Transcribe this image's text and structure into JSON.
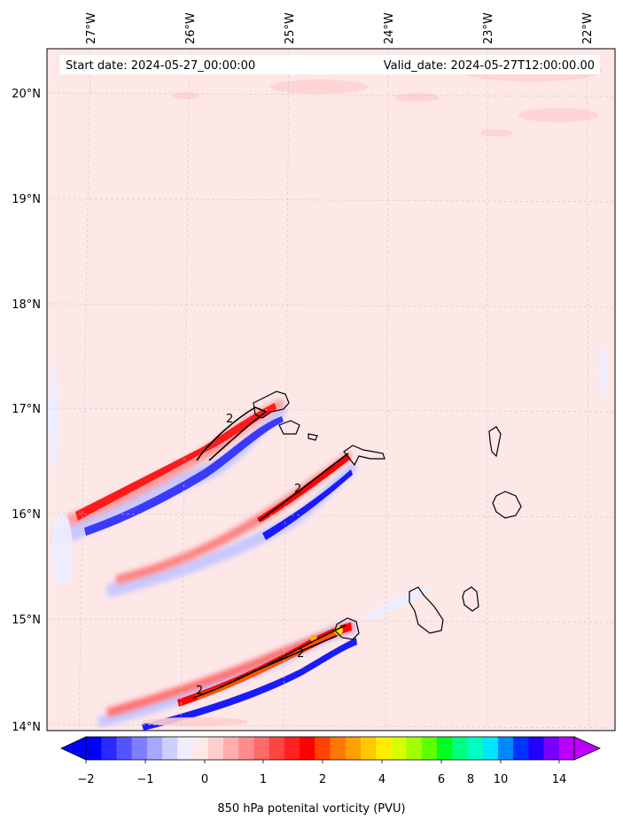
{
  "header": {
    "start_date": "Start date: 2024-05-27_00:00:00",
    "valid_date": "Valid_date: 2024-05-27T12:00:00.00"
  },
  "axes": {
    "lon_labels": [
      "27°W",
      "26°W",
      "25°W",
      "24°W",
      "23°W",
      "22°W"
    ],
    "lat_labels": [
      "20°N",
      "19°N",
      "18°N",
      "17°N",
      "16°N",
      "15°N",
      "14°N"
    ]
  },
  "contour_labels": [
    "2",
    "2",
    "2",
    "2"
  ],
  "colorbar": {
    "title": "850 hPa potenital vorticity (PVU)",
    "tick_labels": [
      "−2",
      "−1",
      "0",
      "1",
      "2",
      "4",
      "6",
      "8",
      "10",
      "14"
    ],
    "colors": [
      "#0000ff",
      "#2a2aff",
      "#5454ff",
      "#7e7eff",
      "#a8a8ff",
      "#cfcfff",
      "#eeeeff",
      "#ffe8e8",
      "#ffcfcf",
      "#ffaeae",
      "#ff8c8c",
      "#ff6a6a",
      "#ff4444",
      "#ff2222",
      "#ff0000",
      "#ff4400",
      "#ff7700",
      "#ffa000",
      "#ffc800",
      "#ffee00",
      "#d8ff00",
      "#a0ff00",
      "#60ff00",
      "#00ff20",
      "#00ff80",
      "#00ffc0",
      "#00e6ff",
      "#0088ff",
      "#0033ff",
      "#2200ff",
      "#7700ff",
      "#bb00ff"
    ]
  },
  "map_colors": {
    "background": "#fde7e7",
    "positive": "#ff0000",
    "negative": "#0000ff"
  }
}
